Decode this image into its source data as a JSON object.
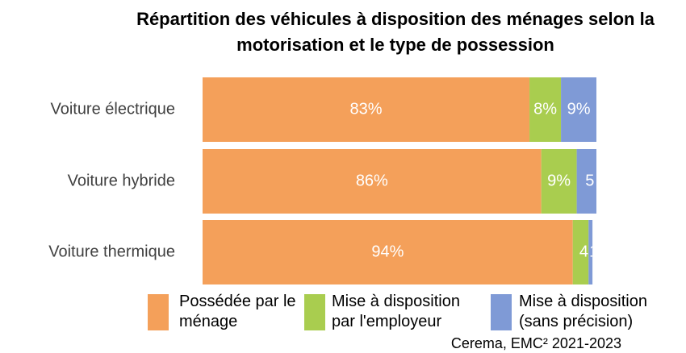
{
  "chart_data": {
    "type": "stacked-bar-horizontal",
    "title": "Répartition des véhicules à disposition des ménages selon la motorisation et le type de possession",
    "categories": [
      "Voiture électrique",
      "Voiture hybride",
      "Voiture thermique"
    ],
    "series": [
      {
        "name": "Possédée par le ménage",
        "color": "#f4a05a",
        "values": [
          83,
          86,
          94
        ],
        "value_labels": [
          "83%",
          "86%",
          "94%"
        ]
      },
      {
        "name": "Mise à disposition par l'employeur",
        "color": "#a9cd4f",
        "values": [
          8,
          9,
          4
        ],
        "value_labels": [
          "8%",
          "9%",
          "4"
        ]
      },
      {
        "name": "Mise à disposition (sans précision)",
        "color": "#7f9ad6",
        "values": [
          9,
          5,
          1
        ],
        "value_labels": [
          "9%",
          "5",
          "1"
        ]
      }
    ],
    "source": "Cerema, EMC² 2021-2023"
  }
}
